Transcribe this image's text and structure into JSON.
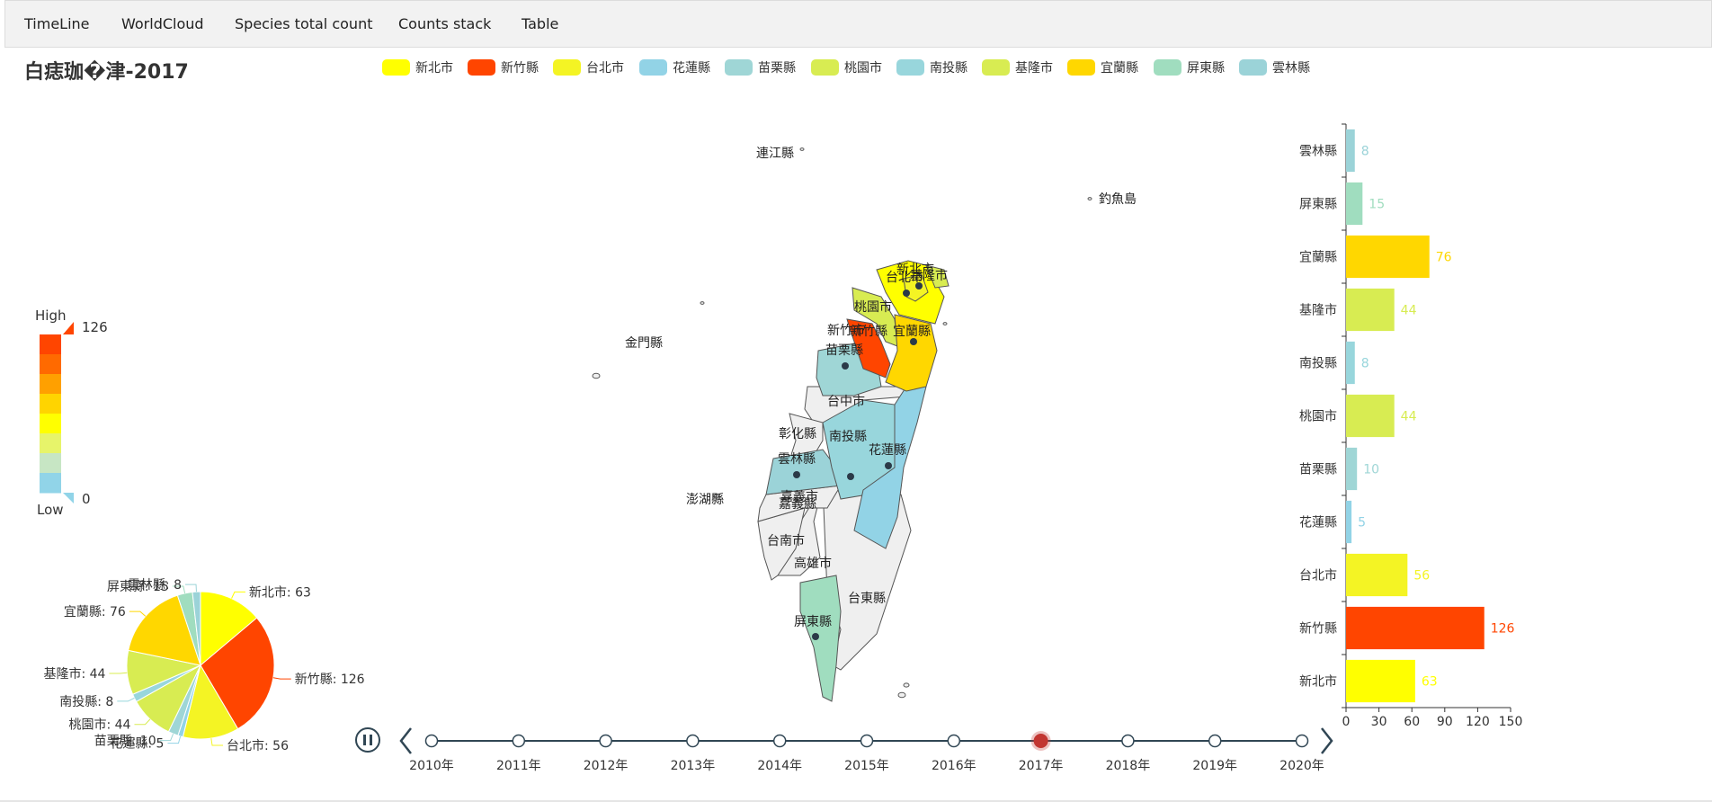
{
  "nav": {
    "items": [
      {
        "id": "timeline",
        "label": "TimeLine"
      },
      {
        "id": "wordcloud",
        "label": "WorldCloud"
      },
      {
        "id": "species",
        "label": "Species total count"
      },
      {
        "id": "stack",
        "label": "Counts stack"
      },
      {
        "id": "table",
        "label": "Table"
      }
    ]
  },
  "legend_items": [
    "新北市",
    "新竹縣",
    "台北市",
    "花蓮縣",
    "苗栗縣",
    "桃園市",
    "南投縣",
    "基隆市",
    "宜蘭縣",
    "屏東縣",
    "雲林縣"
  ],
  "colors": {
    "新北市": "#ffff00",
    "新竹縣": "#ff4500",
    "台北市": "#f4f424",
    "花蓮縣": "#92d3e6",
    "苗栗縣": "#9fd6d6",
    "桃園市": "#d8ec52",
    "南投縣": "#98d6dc",
    "基隆市": "#d8ec52",
    "宜蘭縣": "#ffd700",
    "屏東縣": "#a0ddbf",
    "雲林縣": "#9bd3d8",
    "unselected": "#efefef",
    "axis": "#333333",
    "timeline_active": "#c23531"
  },
  "visual_map": {
    "high_label": "High",
    "low_label": "Low",
    "max": 126,
    "min": 0,
    "stops": [
      "#91d4e8",
      "#c7e6c4",
      "#e7f46a",
      "#ffff00",
      "#ffd400",
      "#ffa000",
      "#ff6a00",
      "#ff4500"
    ]
  },
  "map": {
    "labels": [
      "連江縣",
      "釣魚島",
      "金門縣",
      "新北市",
      "台北市",
      "基隆市",
      "桃園市",
      "新竹市",
      "新竹縣",
      "宜蘭縣",
      "苗栗縣",
      "台中市",
      "彰化縣",
      "南投縣",
      "花蓮縣",
      "雲林縣",
      "澎湖縣",
      "嘉義縣",
      "嘉義市",
      "台南市",
      "高雄市",
      "台東縣",
      "屏東縣"
    ],
    "regions": [
      {
        "name": "新北市",
        "fill": "#ffff00"
      },
      {
        "name": "台北市",
        "fill": "#f4f424"
      },
      {
        "name": "基隆市",
        "fill": "#d8ec52"
      },
      {
        "name": "桃園市",
        "fill": "#d8ec52"
      },
      {
        "name": "新竹縣",
        "fill": "#ff4500"
      },
      {
        "name": "宜蘭縣",
        "fill": "#ffd700"
      },
      {
        "name": "苗栗縣",
        "fill": "#9fd6d6"
      },
      {
        "name": "南投縣",
        "fill": "#98d6dc"
      },
      {
        "name": "花蓮縣",
        "fill": "#92d3e6"
      },
      {
        "name": "雲林縣",
        "fill": "#9bd3d8"
      },
      {
        "name": "屏東縣",
        "fill": "#a0ddbf"
      }
    ]
  },
  "timeline": {
    "years": [
      "2010年",
      "2011年",
      "2012年",
      "2013年",
      "2014年",
      "2015年",
      "2016年",
      "2017年",
      "2018年",
      "2019年",
      "2020年"
    ],
    "current": "2017年"
  },
  "chart_data": {
    "type": "bar",
    "title": "白痣珈�津-2017",
    "categories": [
      "雲林縣",
      "屏東縣",
      "宜蘭縣",
      "基隆市",
      "南投縣",
      "桃園市",
      "苗栗縣",
      "花蓮縣",
      "台北市",
      "新竹縣",
      "新北市"
    ],
    "values": [
      8,
      15,
      76,
      44,
      8,
      44,
      10,
      5,
      56,
      126,
      63
    ],
    "xlim": [
      0,
      150
    ],
    "xticks": [
      0,
      30,
      60,
      90,
      120,
      150
    ],
    "pie": [
      {
        "name": "新北市",
        "value": 63
      },
      {
        "name": "新竹縣",
        "value": 126
      },
      {
        "name": "台北市",
        "value": 56
      },
      {
        "name": "花蓮縣",
        "value": 5
      },
      {
        "name": "苗栗縣",
        "value": 10
      },
      {
        "name": "桃園市",
        "value": 44
      },
      {
        "name": "南投縣",
        "value": 8
      },
      {
        "name": "基隆市",
        "value": 44
      },
      {
        "name": "宜蘭縣",
        "value": 76
      },
      {
        "name": "屏東縣",
        "value": 15
      },
      {
        "name": "雲林縣",
        "value": 8
      }
    ]
  }
}
